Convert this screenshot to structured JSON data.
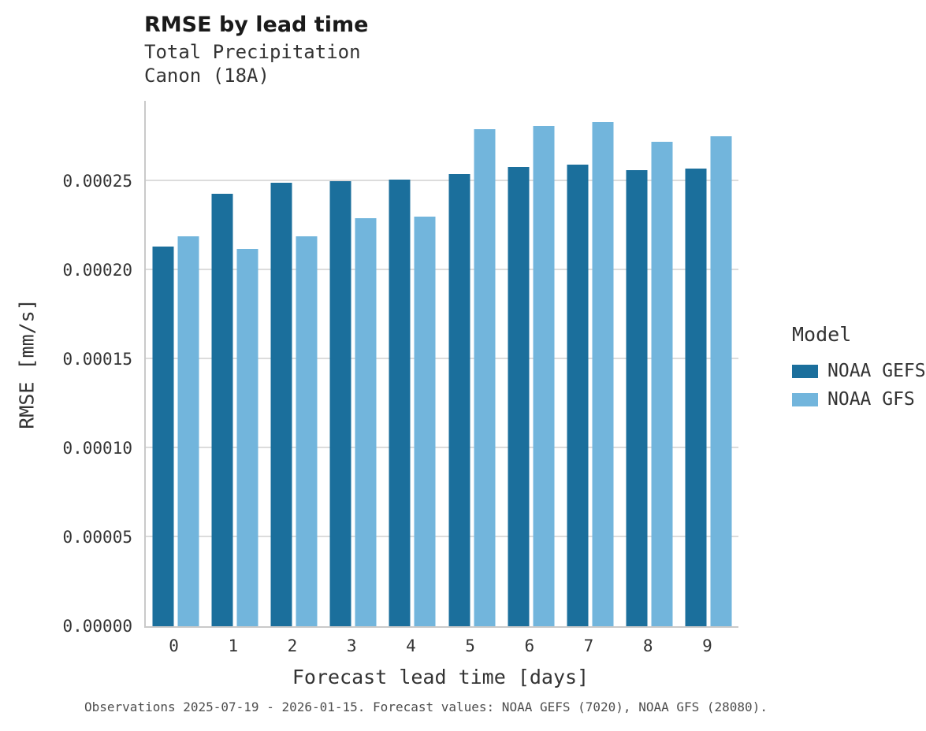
{
  "title": "RMSE by lead time",
  "subtitle1": "Total Precipitation",
  "subtitle2": "Canon (18A)",
  "caption": "Observations 2025-07-19 - 2026-01-15. Forecast values: NOAA GEFS (7020), NOAA GFS (28080).",
  "legend": {
    "title": "Model",
    "entries": [
      {
        "label": "NOAA GEFS",
        "color": "#1b6f9c"
      },
      {
        "label": "NOAA GFS",
        "color": "#72b5dc"
      }
    ]
  },
  "chart_data": {
    "type": "bar",
    "title": "RMSE by lead time",
    "subtitle": [
      "Total Precipitation",
      "Canon (18A)"
    ],
    "xlabel": "Forecast lead time [days]",
    "ylabel": "RMSE [mm/s]",
    "categories": [
      "0",
      "1",
      "2",
      "3",
      "4",
      "5",
      "6",
      "7",
      "8",
      "9"
    ],
    "series": [
      {
        "name": "NOAA GEFS",
        "color": "#1b6f9c",
        "values": [
          0.000213,
          0.000243,
          0.000249,
          0.00025,
          0.000251,
          0.000254,
          0.000258,
          0.000259,
          0.000256,
          0.000257
        ]
      },
      {
        "name": "NOAA GFS",
        "color": "#72b5dc",
        "values": [
          0.000219,
          0.000212,
          0.000219,
          0.000229,
          0.00023,
          0.000279,
          0.000281,
          0.000283,
          0.000272,
          0.000275
        ]
      }
    ],
    "ylim": [
      0,
      0.000295
    ],
    "yticks": [
      {
        "value": 0.0,
        "label": "0.00000"
      },
      {
        "value": 5e-05,
        "label": "0.00005"
      },
      {
        "value": 0.0001,
        "label": "0.00010"
      },
      {
        "value": 0.00015,
        "label": "0.00015"
      },
      {
        "value": 0.0002,
        "label": "0.00020"
      },
      {
        "value": 0.00025,
        "label": "0.00025"
      }
    ],
    "grid": true,
    "legend_position": "right"
  }
}
